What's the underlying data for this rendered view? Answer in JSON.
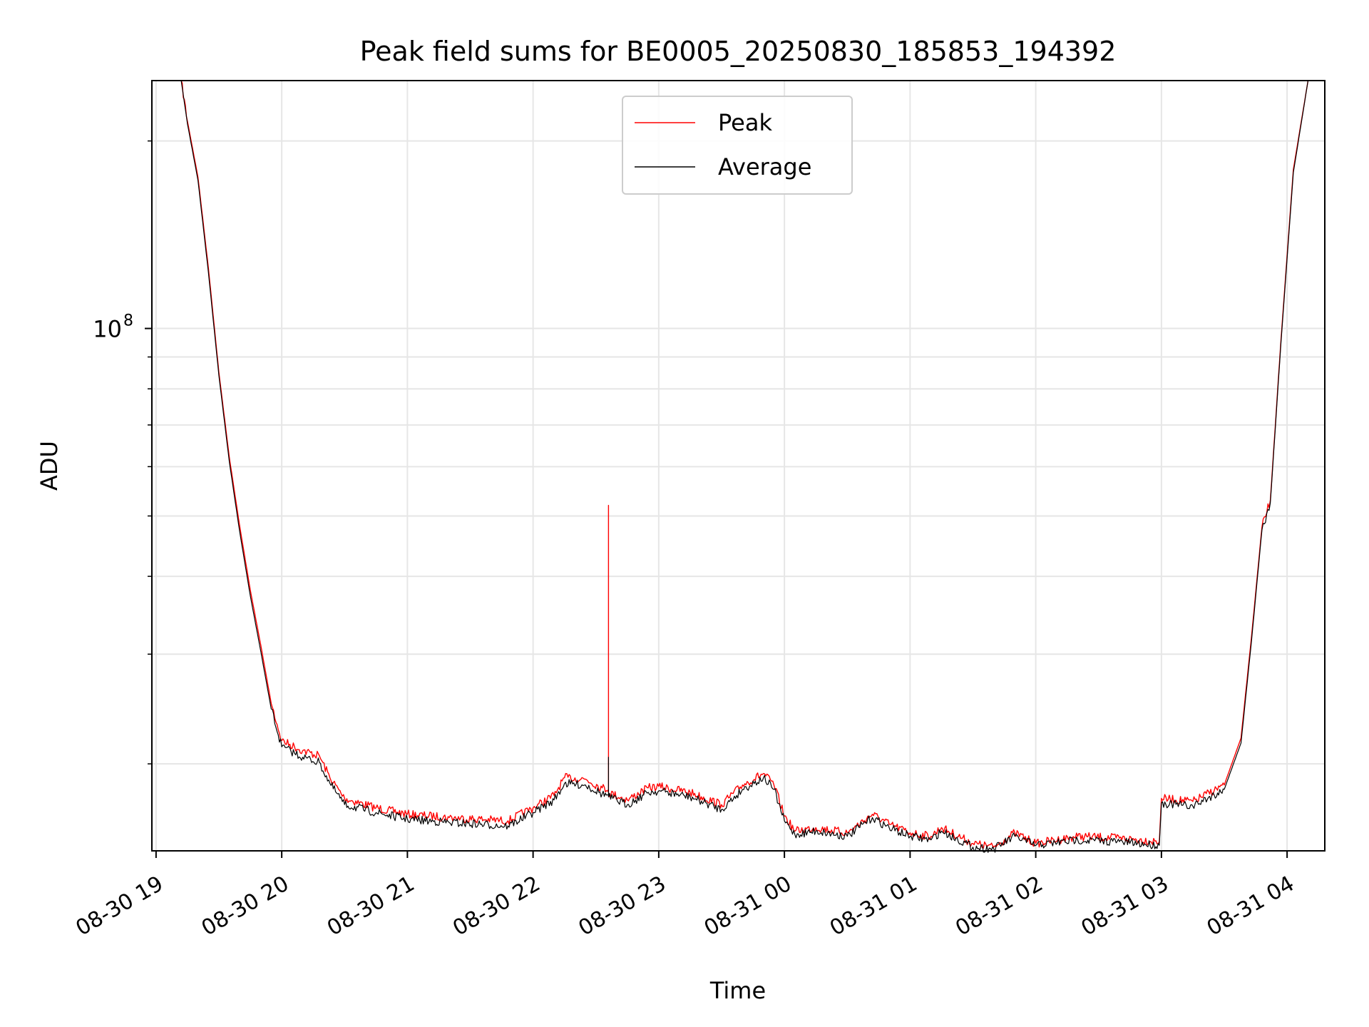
{
  "chart_data": {
    "type": "line",
    "title": "Peak field sums for BE0005_20250830_185853_194392",
    "xlabel": "Time",
    "ylabel": "ADU",
    "yscale": "log",
    "ylim": [
      14500000,
      250000000
    ],
    "xlim": [
      "2025-08-30 18:58",
      "2025-08-31 04:18"
    ],
    "grid": true,
    "legend_position": "upper center",
    "x_ticks": [
      "08-30 19",
      "08-30 20",
      "08-30 21",
      "08-30 22",
      "08-30 23",
      "08-31 00",
      "08-31 01",
      "08-31 02",
      "08-31 03",
      "08-31 04"
    ],
    "x_tick_values": [
      "2025-08-30 19:00",
      "2025-08-30 20:00",
      "2025-08-30 21:00",
      "2025-08-30 22:00",
      "2025-08-30 23:00",
      "2025-08-31 00:00",
      "2025-08-31 01:00",
      "2025-08-31 02:00",
      "2025-08-31 03:00",
      "2025-08-31 04:00"
    ],
    "y_major_tick": {
      "value": 100000000,
      "base": "10",
      "exp": "8"
    },
    "y_minor_ticks": [
      20000000,
      30000000,
      40000000,
      50000000,
      60000000,
      70000000,
      80000000,
      90000000,
      200000000
    ],
    "series": [
      {
        "name": "Peak",
        "color": "#ff0000",
        "points": [
          [
            "2025-08-30 19:12",
            250000000
          ],
          [
            "2025-08-30 19:15",
            215000000
          ],
          [
            "2025-08-30 19:20",
            175000000
          ],
          [
            "2025-08-30 19:25",
            125000000
          ],
          [
            "2025-08-30 19:30",
            85000000
          ],
          [
            "2025-08-30 19:35",
            62000000
          ],
          [
            "2025-08-30 19:40",
            48000000
          ],
          [
            "2025-08-30 19:45",
            38000000
          ],
          [
            "2025-08-30 19:50",
            31000000
          ],
          [
            "2025-08-30 19:55",
            25000000
          ],
          [
            "2025-08-30 20:00",
            21800000
          ],
          [
            "2025-08-30 20:10",
            21000000
          ],
          [
            "2025-08-30 20:18",
            20600000
          ],
          [
            "2025-08-30 20:23",
            19000000
          ],
          [
            "2025-08-30 20:30",
            17600000
          ],
          [
            "2025-08-30 20:45",
            17000000
          ],
          [
            "2025-08-30 21:00",
            16600000
          ],
          [
            "2025-08-30 21:20",
            16400000
          ],
          [
            "2025-08-30 21:48",
            16200000
          ],
          [
            "2025-08-30 22:00",
            17000000
          ],
          [
            "2025-08-30 22:10",
            17800000
          ],
          [
            "2025-08-30 22:15",
            19000000
          ],
          [
            "2025-08-30 22:25",
            18900000
          ],
          [
            "2025-08-30 22:33",
            18300000
          ],
          [
            "2025-08-30 22:36",
            18200000
          ],
          [
            "2025-08-30 22:36",
            52000000
          ],
          [
            "2025-08-30 22:36",
            18000000
          ],
          [
            "2025-08-30 22:45",
            17500000
          ],
          [
            "2025-08-30 22:55",
            18300000
          ],
          [
            "2025-08-30 23:00",
            18400000
          ],
          [
            "2025-08-30 23:15",
            18000000
          ],
          [
            "2025-08-30 23:30",
            17200000
          ],
          [
            "2025-08-30 23:40",
            18500000
          ],
          [
            "2025-08-30 23:50",
            19300000
          ],
          [
            "2025-08-30 23:55",
            18500000
          ],
          [
            "2025-08-31 00:00",
            16500000
          ],
          [
            "2025-08-31 00:05",
            15600000
          ],
          [
            "2025-08-31 00:15",
            15800000
          ],
          [
            "2025-08-31 00:30",
            15500000
          ],
          [
            "2025-08-31 00:42",
            16600000
          ],
          [
            "2025-08-31 00:50",
            16000000
          ],
          [
            "2025-08-31 01:00",
            15500000
          ],
          [
            "2025-08-31 01:10",
            15300000
          ],
          [
            "2025-08-31 01:15",
            15800000
          ],
          [
            "2025-08-31 01:30",
            14900000
          ],
          [
            "2025-08-31 01:40",
            14700000
          ],
          [
            "2025-08-31 01:50",
            15500000
          ],
          [
            "2025-08-31 02:00",
            14900000
          ],
          [
            "2025-08-31 02:20",
            15300000
          ],
          [
            "2025-08-31 02:40",
            15200000
          ],
          [
            "2025-08-31 02:59",
            15000000
          ],
          [
            "2025-08-31 03:00",
            17600000
          ],
          [
            "2025-08-31 03:15",
            17400000
          ],
          [
            "2025-08-31 03:30",
            18500000
          ],
          [
            "2025-08-31 03:38",
            22000000
          ],
          [
            "2025-08-31 03:43",
            32000000
          ],
          [
            "2025-08-31 03:48",
            48000000
          ],
          [
            "2025-08-31 03:52",
            53000000
          ],
          [
            "2025-08-31 03:57",
            95000000
          ],
          [
            "2025-08-31 04:03",
            180000000
          ],
          [
            "2025-08-31 04:10",
            250000000
          ]
        ]
      },
      {
        "name": "Average",
        "color": "#000000",
        "points": [
          [
            "2025-08-30 19:12",
            250000000
          ],
          [
            "2025-08-30 19:15",
            213000000
          ],
          [
            "2025-08-30 19:20",
            173000000
          ],
          [
            "2025-08-30 19:25",
            123000000
          ],
          [
            "2025-08-30 19:30",
            84000000
          ],
          [
            "2025-08-30 19:35",
            61000000
          ],
          [
            "2025-08-30 19:40",
            47000000
          ],
          [
            "2025-08-30 19:45",
            37200000
          ],
          [
            "2025-08-30 19:50",
            30300000
          ],
          [
            "2025-08-30 19:55",
            24500000
          ],
          [
            "2025-08-30 20:00",
            21300000
          ],
          [
            "2025-08-30 20:10",
            20500000
          ],
          [
            "2025-08-30 20:18",
            20100000
          ],
          [
            "2025-08-30 20:23",
            18600000
          ],
          [
            "2025-08-30 20:30",
            17200000
          ],
          [
            "2025-08-30 20:45",
            16700000
          ],
          [
            "2025-08-30 21:00",
            16300000
          ],
          [
            "2025-08-30 21:20",
            16100000
          ],
          [
            "2025-08-30 21:48",
            15900000
          ],
          [
            "2025-08-30 22:00",
            16700000
          ],
          [
            "2025-08-30 22:10",
            17500000
          ],
          [
            "2025-08-30 22:15",
            18600000
          ],
          [
            "2025-08-30 22:25",
            18500000
          ],
          [
            "2025-08-30 22:33",
            17900000
          ],
          [
            "2025-08-30 22:36",
            17800000
          ],
          [
            "2025-08-30 22:36",
            20500000
          ],
          [
            "2025-08-30 22:36",
            17700000
          ],
          [
            "2025-08-30 22:45",
            17200000
          ],
          [
            "2025-08-30 22:55",
            18000000
          ],
          [
            "2025-08-30 23:00",
            18100000
          ],
          [
            "2025-08-30 23:15",
            17700000
          ],
          [
            "2025-08-30 23:30",
            16900000
          ],
          [
            "2025-08-30 23:40",
            18200000
          ],
          [
            "2025-08-30 23:50",
            19000000
          ],
          [
            "2025-08-30 23:55",
            18200000
          ],
          [
            "2025-08-31 00:00",
            16200000
          ],
          [
            "2025-08-31 00:05",
            15400000
          ],
          [
            "2025-08-31 00:15",
            15600000
          ],
          [
            "2025-08-31 00:30",
            15300000
          ],
          [
            "2025-08-31 00:42",
            16400000
          ],
          [
            "2025-08-31 00:50",
            15800000
          ],
          [
            "2025-08-31 01:00",
            15300000
          ],
          [
            "2025-08-31 01:10",
            15100000
          ],
          [
            "2025-08-31 01:15",
            15600000
          ],
          [
            "2025-08-31 01:30",
            14700000
          ],
          [
            "2025-08-31 01:40",
            14600000
          ],
          [
            "2025-08-31 01:50",
            15300000
          ],
          [
            "2025-08-31 02:00",
            14800000
          ],
          [
            "2025-08-31 02:20",
            15100000
          ],
          [
            "2025-08-31 02:40",
            15000000
          ],
          [
            "2025-08-31 02:59",
            14800000
          ],
          [
            "2025-08-31 03:00",
            17300000
          ],
          [
            "2025-08-31 03:15",
            17100000
          ],
          [
            "2025-08-31 03:30",
            18200000
          ],
          [
            "2025-08-31 03:38",
            21600000
          ],
          [
            "2025-08-31 03:43",
            31500000
          ],
          [
            "2025-08-31 03:48",
            47500000
          ],
          [
            "2025-08-31 03:52",
            52500000
          ],
          [
            "2025-08-31 03:57",
            94000000
          ],
          [
            "2025-08-31 04:03",
            178000000
          ],
          [
            "2025-08-31 04:10",
            250000000
          ]
        ]
      }
    ]
  }
}
